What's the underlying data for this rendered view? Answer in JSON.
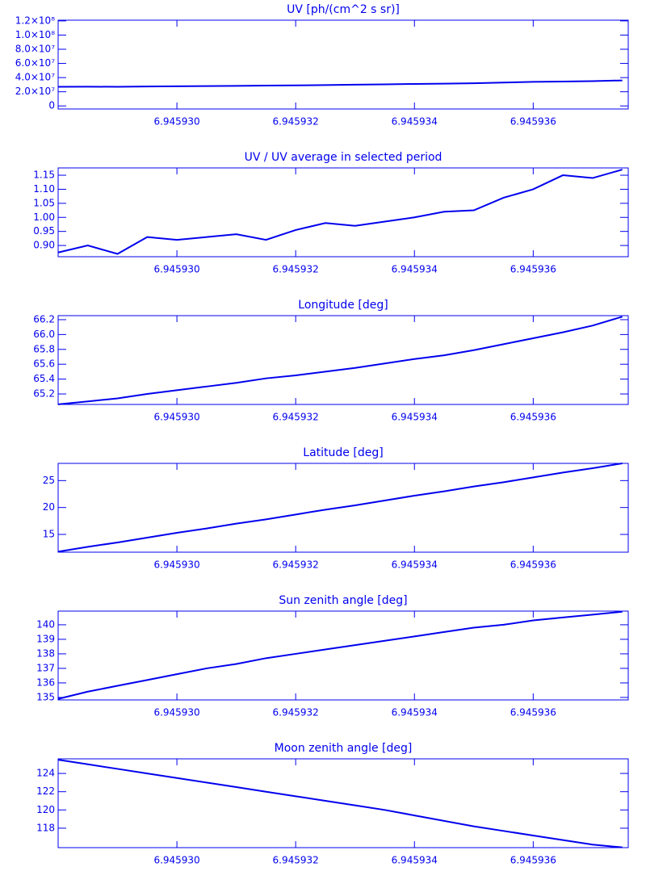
{
  "chart_data": [
    {
      "type": "line",
      "title": "UV [ph/(cm^2 s sr)]",
      "color": "#0000ee",
      "x": [
        6.945928,
        6.9459285,
        6.945929,
        6.9459295,
        6.94593,
        6.9459305,
        6.945931,
        6.9459315,
        6.945932,
        6.9459325,
        6.945933,
        6.9459335,
        6.945934,
        6.9459345,
        6.945935,
        6.9459355,
        6.945936,
        6.9459365,
        6.945937,
        6.9459375
      ],
      "values": [
        27000000,
        27200000,
        27000000,
        27500000,
        27800000,
        28000000,
        28300000,
        28700000,
        29000000,
        29500000,
        30000000,
        30500000,
        31000000,
        31500000,
        32000000,
        33000000,
        34000000,
        34500000,
        35000000,
        36000000
      ],
      "xlim": [
        6.945928,
        6.9459376
      ],
      "xticks": [
        {
          "value": 6.94593,
          "label": "6.945930"
        },
        6.945932,
        6.945934,
        6.945936
      ],
      "ylim": [
        -4300000,
        121000000
      ],
      "yticks": [
        0,
        {
          "value": 20000000,
          "label": "2.0×10⁷"
        },
        {
          "value": 40000000,
          "label": "4.0×10⁷"
        },
        {
          "value": 60000000,
          "label": "6.0×10⁷"
        },
        {
          "value": 80000000,
          "label": "8.0×10⁷"
        },
        {
          "value": 100000000,
          "label": "1.0×10⁸"
        },
        {
          "value": 120000000,
          "label": "1.2×10⁸"
        }
      ]
    },
    {
      "type": "line",
      "title": "UV / UV average in selected period",
      "color": "#0000ee",
      "x": [
        6.945928,
        6.9459285,
        6.945929,
        6.9459295,
        6.94593,
        6.9459305,
        6.945931,
        6.9459315,
        6.945932,
        6.9459325,
        6.945933,
        6.9459335,
        6.945934,
        6.9459345,
        6.945935,
        6.9459355,
        6.945936,
        6.9459365,
        6.945937,
        6.9459375
      ],
      "values": [
        0.875,
        0.9,
        0.87,
        0.93,
        0.92,
        0.93,
        0.94,
        0.92,
        0.955,
        0.98,
        0.97,
        0.985,
        1.0,
        1.02,
        1.025,
        1.07,
        1.1,
        1.15,
        1.14,
        1.17
      ],
      "xlim": [
        6.945928,
        6.9459376
      ],
      "xticks": [
        {
          "value": 6.94593,
          "label": "6.945930"
        },
        6.945932,
        6.945934,
        6.945936
      ],
      "ylim": [
        0.86,
        1.176
      ],
      "yticks": [
        {
          "value": 0.9,
          "label": "0.90"
        },
        0.95,
        {
          "value": 1,
          "label": "1.00"
        },
        1.05,
        {
          "value": 1.1,
          "label": "1.10"
        },
        1.15
      ]
    },
    {
      "type": "line",
      "title": "Longitude [deg]",
      "color": "#0000ee",
      "x": [
        6.945928,
        6.9459285,
        6.945929,
        6.9459295,
        6.94593,
        6.9459305,
        6.945931,
        6.9459315,
        6.945932,
        6.9459325,
        6.945933,
        6.9459335,
        6.945934,
        6.9459345,
        6.945935,
        6.9459355,
        6.945936,
        6.9459365,
        6.945937,
        6.9459375
      ],
      "values": [
        65.06,
        65.1,
        65.14,
        65.2,
        65.25,
        65.3,
        65.35,
        65.41,
        65.45,
        65.5,
        65.55,
        65.61,
        65.67,
        65.72,
        65.79,
        65.87,
        65.95,
        66.03,
        66.12,
        66.24
      ],
      "xlim": [
        6.945928,
        6.9459376
      ],
      "xticks": [
        {
          "value": 6.94593,
          "label": "6.945930"
        },
        6.945932,
        6.945934,
        6.945936
      ],
      "ylim": [
        65.059,
        66.254
      ],
      "yticks": [
        65.2,
        65.4,
        65.6,
        65.8,
        {
          "value": 66,
          "label": "66.0"
        },
        66.2
      ]
    },
    {
      "type": "line",
      "title": "Latitude [deg]",
      "color": "#0000ee",
      "x": [
        6.945928,
        6.9459285,
        6.945929,
        6.9459295,
        6.94593,
        6.9459305,
        6.945931,
        6.9459315,
        6.945932,
        6.9459325,
        6.945933,
        6.9459335,
        6.945934,
        6.9459345,
        6.945935,
        6.9459355,
        6.945936,
        6.9459365,
        6.945937,
        6.9459375
      ],
      "values": [
        11.8,
        12.7,
        13.5,
        14.4,
        15.3,
        16.1,
        17.0,
        17.8,
        18.7,
        19.6,
        20.4,
        21.3,
        22.2,
        23.0,
        23.9,
        24.7,
        25.6,
        26.5,
        27.3,
        28.2
      ],
      "xlim": [
        6.945928,
        6.9459376
      ],
      "xticks": [
        {
          "value": 6.94593,
          "label": "6.945930"
        },
        6.945932,
        6.945934,
        6.945936
      ],
      "ylim": [
        11.7,
        28.2
      ],
      "yticks": [
        15,
        20,
        25
      ]
    },
    {
      "type": "line",
      "title": "Sun zenith angle [deg]",
      "color": "#0000ee",
      "x": [
        6.945928,
        6.9459285,
        6.945929,
        6.9459295,
        6.94593,
        6.9459305,
        6.945931,
        6.9459315,
        6.945932,
        6.9459325,
        6.945933,
        6.9459335,
        6.945934,
        6.9459345,
        6.945935,
        6.9459355,
        6.945936,
        6.9459365,
        6.945937,
        6.9459375
      ],
      "values": [
        134.9,
        135.4,
        135.8,
        136.2,
        136.6,
        137.0,
        137.3,
        137.7,
        138.0,
        138.3,
        138.6,
        138.9,
        139.2,
        139.5,
        139.8,
        140.0,
        140.3,
        140.5,
        140.7,
        140.9
      ],
      "xlim": [
        6.945928,
        6.9459376
      ],
      "xticks": [
        {
          "value": 6.94593,
          "label": "6.945930"
        },
        6.945932,
        6.945934,
        6.945936
      ],
      "ylim": [
        134.83,
        140.94
      ],
      "yticks": [
        135,
        136,
        137,
        138,
        139,
        140
      ]
    },
    {
      "type": "line",
      "title": "Moon zenith angle [deg]",
      "color": "#0000ee",
      "x": [
        6.945928,
        6.9459285,
        6.945929,
        6.9459295,
        6.94593,
        6.9459305,
        6.945931,
        6.9459315,
        6.945932,
        6.9459325,
        6.945933,
        6.9459335,
        6.945934,
        6.9459345,
        6.945935,
        6.9459355,
        6.945936,
        6.9459365,
        6.945937,
        6.9459375
      ],
      "values": [
        125.5,
        125.0,
        124.5,
        124.0,
        123.5,
        123.0,
        122.5,
        122.0,
        121.5,
        121.0,
        120.5,
        120.0,
        119.4,
        118.8,
        118.2,
        117.7,
        117.2,
        116.7,
        116.2,
        115.9
      ],
      "xlim": [
        6.945928,
        6.9459376
      ],
      "xticks": [
        {
          "value": 6.94593,
          "label": "6.945930"
        },
        6.945932,
        6.945934,
        6.945936
      ],
      "ylim": [
        115.87,
        125.6
      ],
      "yticks": [
        118,
        120,
        122,
        124
      ]
    }
  ]
}
